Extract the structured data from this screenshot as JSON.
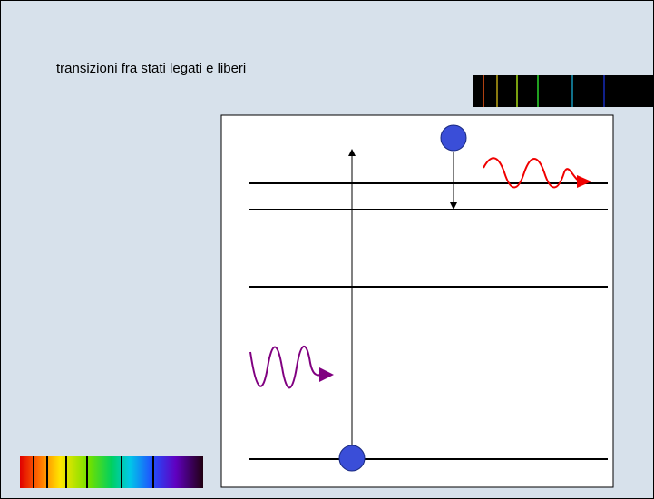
{
  "header": {
    "title": "transizioni fra stati legati e liberi"
  }
}
